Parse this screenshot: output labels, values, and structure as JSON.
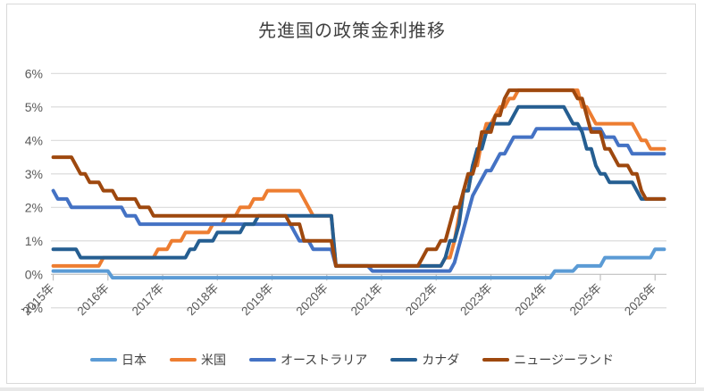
{
  "title": "先進国の政策金利推移",
  "chart_data": {
    "type": "line",
    "title": "先進国の政策金利推移",
    "x_unit": "month",
    "x_start": "2015-01",
    "x_end": "2026-03",
    "grid": true,
    "legend_position": "bottom",
    "y_axis": {
      "unit": "%",
      "min": -1,
      "max": 6,
      "tick_values": [
        6,
        5,
        4,
        3,
        2,
        1,
        0,
        -1
      ],
      "tick_labels": [
        "6%",
        "5%",
        "4%",
        "3%",
        "2%",
        "1%",
        "0%",
        "-1%"
      ]
    },
    "x_axis": {
      "tick_years": [
        2015,
        2016,
        2017,
        2018,
        2019,
        2020,
        2021,
        2022,
        2023,
        2024,
        2025,
        2026
      ],
      "tick_labels": [
        "2015年",
        "2016年",
        "2017年",
        "2018年",
        "2019年",
        "2020年",
        "2021年",
        "2022年",
        "2023年",
        "2024年",
        "2025年",
        "2026年"
      ]
    },
    "series": [
      {
        "key": "japan",
        "name": "日本",
        "color": "#5B9BD5",
        "start_value": 0.1,
        "rate_changes": [
          [
            "2016-02",
            -0.1
          ],
          [
            "2024-03",
            0.1
          ],
          [
            "2024-08",
            0.25
          ],
          [
            "2025-02",
            0.5
          ],
          [
            "2026-01",
            0.75
          ]
        ],
        "end_value": 0.75
      },
      {
        "key": "us",
        "name": "米国",
        "color": "#ED7D31",
        "start_value": 0.25,
        "rate_changes": [
          [
            "2015-12",
            0.5
          ],
          [
            "2016-12",
            0.75
          ],
          [
            "2017-03",
            1.0
          ],
          [
            "2017-06",
            1.25
          ],
          [
            "2017-12",
            1.5
          ],
          [
            "2018-03",
            1.75
          ],
          [
            "2018-06",
            2.0
          ],
          [
            "2018-09",
            2.25
          ],
          [
            "2018-12",
            2.5
          ],
          [
            "2019-08",
            2.25
          ],
          [
            "2019-09",
            2.0
          ],
          [
            "2019-10",
            1.75
          ],
          [
            "2020-03",
            0.25
          ],
          [
            "2022-03",
            0.5
          ],
          [
            "2022-05",
            1.0
          ],
          [
            "2022-06",
            1.75
          ],
          [
            "2022-07",
            2.5
          ],
          [
            "2022-09",
            3.25
          ],
          [
            "2022-11",
            4.0
          ],
          [
            "2022-12",
            4.5
          ],
          [
            "2023-02",
            4.75
          ],
          [
            "2023-03",
            5.0
          ],
          [
            "2023-05",
            5.25
          ],
          [
            "2023-07",
            5.5
          ],
          [
            "2024-09",
            5.0
          ],
          [
            "2024-11",
            4.75
          ],
          [
            "2024-12",
            4.5
          ],
          [
            "2025-09",
            4.25
          ],
          [
            "2025-10",
            4.0
          ],
          [
            "2025-12",
            3.75
          ]
        ],
        "end_value": 3.75
      },
      {
        "key": "australia",
        "name": "オーストラリア",
        "color": "#4472C4",
        "start_value": 2.5,
        "rate_changes": [
          [
            "2015-02",
            2.25
          ],
          [
            "2015-05",
            2.0
          ],
          [
            "2016-05",
            1.75
          ],
          [
            "2016-08",
            1.5
          ],
          [
            "2019-06",
            1.25
          ],
          [
            "2019-07",
            1.0
          ],
          [
            "2019-10",
            0.75
          ],
          [
            "2020-03",
            0.25
          ],
          [
            "2020-11",
            0.1
          ],
          [
            "2022-05",
            0.35
          ],
          [
            "2022-06",
            0.85
          ],
          [
            "2022-07",
            1.35
          ],
          [
            "2022-08",
            1.85
          ],
          [
            "2022-09",
            2.35
          ],
          [
            "2022-10",
            2.6
          ],
          [
            "2022-11",
            2.85
          ],
          [
            "2022-12",
            3.1
          ],
          [
            "2023-02",
            3.35
          ],
          [
            "2023-03",
            3.6
          ],
          [
            "2023-05",
            3.85
          ],
          [
            "2023-06",
            4.1
          ],
          [
            "2023-11",
            4.35
          ],
          [
            "2025-02",
            4.1
          ],
          [
            "2025-05",
            3.85
          ],
          [
            "2025-08",
            3.6
          ]
        ],
        "end_value": 3.6
      },
      {
        "key": "canada",
        "name": "カナダ",
        "color": "#255E91",
        "start_value": 0.75,
        "rate_changes": [
          [
            "2015-07",
            0.5
          ],
          [
            "2017-07",
            0.75
          ],
          [
            "2017-09",
            1.0
          ],
          [
            "2018-01",
            1.25
          ],
          [
            "2018-07",
            1.5
          ],
          [
            "2018-10",
            1.75
          ],
          [
            "2020-03",
            0.25
          ],
          [
            "2022-03",
            0.5
          ],
          [
            "2022-04",
            1.0
          ],
          [
            "2022-06",
            1.5
          ],
          [
            "2022-07",
            2.5
          ],
          [
            "2022-09",
            3.25
          ],
          [
            "2022-10",
            3.75
          ],
          [
            "2022-12",
            4.25
          ],
          [
            "2023-01",
            4.5
          ],
          [
            "2023-06",
            4.75
          ],
          [
            "2023-07",
            5.0
          ],
          [
            "2024-06",
            4.75
          ],
          [
            "2024-07",
            4.5
          ],
          [
            "2024-09",
            4.25
          ],
          [
            "2024-10",
            3.75
          ],
          [
            "2024-12",
            3.25
          ],
          [
            "2025-01",
            3.0
          ],
          [
            "2025-03",
            2.75
          ],
          [
            "2025-09",
            2.5
          ],
          [
            "2025-10",
            2.25
          ]
        ],
        "end_value": 2.25
      },
      {
        "key": "new-zealand",
        "name": "ニュージーランド",
        "color": "#9E480E",
        "start_value": 3.5,
        "rate_changes": [
          [
            "2015-06",
            3.25
          ],
          [
            "2015-07",
            3.0
          ],
          [
            "2015-09",
            2.75
          ],
          [
            "2015-12",
            2.5
          ],
          [
            "2016-03",
            2.25
          ],
          [
            "2016-08",
            2.0
          ],
          [
            "2016-11",
            1.75
          ],
          [
            "2019-05",
            1.5
          ],
          [
            "2019-08",
            1.0
          ],
          [
            "2020-03",
            0.25
          ],
          [
            "2021-10",
            0.5
          ],
          [
            "2021-11",
            0.75
          ],
          [
            "2022-02",
            1.0
          ],
          [
            "2022-04",
            1.5
          ],
          [
            "2022-05",
            2.0
          ],
          [
            "2022-07",
            2.5
          ],
          [
            "2022-08",
            3.0
          ],
          [
            "2022-10",
            3.5
          ],
          [
            "2022-11",
            4.25
          ],
          [
            "2023-02",
            4.75
          ],
          [
            "2023-04",
            5.25
          ],
          [
            "2023-05",
            5.5
          ],
          [
            "2024-08",
            5.25
          ],
          [
            "2024-10",
            4.75
          ],
          [
            "2024-11",
            4.25
          ],
          [
            "2025-02",
            3.75
          ],
          [
            "2025-04",
            3.5
          ],
          [
            "2025-05",
            3.25
          ],
          [
            "2025-08",
            3.0
          ],
          [
            "2025-10",
            2.5
          ],
          [
            "2025-11",
            2.25
          ]
        ],
        "end_value": 2.25
      }
    ]
  },
  "colors": {
    "gridline": "#D9D9D9",
    "axis": "#BFBFBF",
    "axis_text": "#595959",
    "title_text": "#3f3f3f",
    "legend_text": "#404040"
  }
}
